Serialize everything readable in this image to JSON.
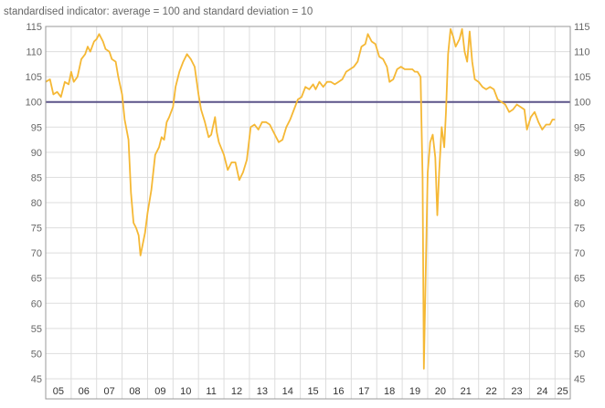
{
  "chart_data": {
    "type": "line",
    "subtitle": "standardised indicator: average = 100 and standard deviation = 10",
    "x_unit": "year",
    "xlim": [
      2005.0,
      2025.6
    ],
    "ylim": [
      45,
      115
    ],
    "y_ticks": [
      45,
      50,
      55,
      60,
      65,
      70,
      75,
      80,
      85,
      90,
      95,
      100,
      105,
      110,
      115
    ],
    "x_ticks": [
      "05",
      "06",
      "07",
      "08",
      "09",
      "10",
      "11",
      "12",
      "13",
      "14",
      "15",
      "16",
      "17",
      "18",
      "19",
      "20",
      "21",
      "22",
      "23",
      "24",
      "25"
    ],
    "reference_line": {
      "y": 100,
      "color": "#5b5489"
    },
    "grid": true,
    "colors": {
      "series": "#f5b835",
      "grid": "#dddddd",
      "axis": "#999999",
      "reference": "#5b5489"
    },
    "series": [
      {
        "points": [
          [
            2005.0,
            104.0
          ],
          [
            2005.17,
            104.5
          ],
          [
            2005.3,
            101.5
          ],
          [
            2005.45,
            102.0
          ],
          [
            2005.6,
            101.0
          ],
          [
            2005.75,
            104.0
          ],
          [
            2005.9,
            103.5
          ],
          [
            2006.0,
            106.0
          ],
          [
            2006.1,
            104.0
          ],
          [
            2006.25,
            105.0
          ],
          [
            2006.4,
            108.5
          ],
          [
            2006.55,
            109.5
          ],
          [
            2006.65,
            111.0
          ],
          [
            2006.75,
            110.0
          ],
          [
            2006.9,
            112.0
          ],
          [
            2007.0,
            112.5
          ],
          [
            2007.1,
            113.5
          ],
          [
            2007.25,
            112.0
          ],
          [
            2007.35,
            110.5
          ],
          [
            2007.5,
            110.0
          ],
          [
            2007.6,
            108.5
          ],
          [
            2007.75,
            108.0
          ],
          [
            2007.85,
            105.0
          ],
          [
            2008.0,
            101.5
          ],
          [
            2008.1,
            96.5
          ],
          [
            2008.25,
            92.5
          ],
          [
            2008.35,
            82.0
          ],
          [
            2008.45,
            76.0
          ],
          [
            2008.55,
            75.0
          ],
          [
            2008.65,
            73.5
          ],
          [
            2008.72,
            69.5
          ],
          [
            2008.8,
            71.5
          ],
          [
            2008.9,
            74.0
          ],
          [
            2009.0,
            78.0
          ],
          [
            2009.15,
            82.5
          ],
          [
            2009.3,
            89.5
          ],
          [
            2009.45,
            91.0
          ],
          [
            2009.55,
            93.0
          ],
          [
            2009.65,
            92.5
          ],
          [
            2009.75,
            96.0
          ],
          [
            2009.85,
            97.0
          ],
          [
            2010.0,
            99.0
          ],
          [
            2010.1,
            103.0
          ],
          [
            2010.25,
            106.0
          ],
          [
            2010.4,
            108.0
          ],
          [
            2010.55,
            109.5
          ],
          [
            2010.7,
            108.5
          ],
          [
            2010.85,
            107.0
          ],
          [
            2011.0,
            101.5
          ],
          [
            2011.1,
            98.5
          ],
          [
            2011.25,
            96.0
          ],
          [
            2011.4,
            93.0
          ],
          [
            2011.5,
            93.5
          ],
          [
            2011.65,
            97.0
          ],
          [
            2011.72,
            94.0
          ],
          [
            2011.8,
            92.0
          ],
          [
            2012.0,
            89.5
          ],
          [
            2012.15,
            86.5
          ],
          [
            2012.3,
            88.0
          ],
          [
            2012.45,
            88.0
          ],
          [
            2012.6,
            84.5
          ],
          [
            2012.75,
            86.0
          ],
          [
            2012.9,
            88.5
          ],
          [
            2013.05,
            95.0
          ],
          [
            2013.2,
            95.5
          ],
          [
            2013.35,
            94.5
          ],
          [
            2013.5,
            96.0
          ],
          [
            2013.65,
            96.0
          ],
          [
            2013.8,
            95.5
          ],
          [
            2014.0,
            93.5
          ],
          [
            2014.15,
            92.0
          ],
          [
            2014.3,
            92.5
          ],
          [
            2014.45,
            95.0
          ],
          [
            2014.6,
            96.5
          ],
          [
            2014.75,
            98.5
          ],
          [
            2014.9,
            100.5
          ],
          [
            2015.05,
            101.0
          ],
          [
            2015.2,
            103.0
          ],
          [
            2015.35,
            102.5
          ],
          [
            2015.5,
            103.5
          ],
          [
            2015.6,
            102.5
          ],
          [
            2015.75,
            104.0
          ],
          [
            2015.9,
            103.0
          ],
          [
            2016.05,
            104.0
          ],
          [
            2016.2,
            104.0
          ],
          [
            2016.35,
            103.5
          ],
          [
            2016.5,
            104.0
          ],
          [
            2016.65,
            104.5
          ],
          [
            2016.8,
            106.0
          ],
          [
            2016.95,
            106.5
          ],
          [
            2017.1,
            107.0
          ],
          [
            2017.25,
            108.0
          ],
          [
            2017.4,
            111.0
          ],
          [
            2017.55,
            111.5
          ],
          [
            2017.65,
            113.5
          ],
          [
            2017.8,
            112.0
          ],
          [
            2017.95,
            111.5
          ],
          [
            2018.1,
            109.0
          ],
          [
            2018.25,
            108.5
          ],
          [
            2018.4,
            107.0
          ],
          [
            2018.5,
            104.0
          ],
          [
            2018.65,
            104.5
          ],
          [
            2018.8,
            106.5
          ],
          [
            2018.95,
            107.0
          ],
          [
            2019.1,
            106.5
          ],
          [
            2019.25,
            106.5
          ],
          [
            2019.4,
            106.5
          ],
          [
            2019.5,
            106.0
          ],
          [
            2019.6,
            106.0
          ],
          [
            2019.72,
            105.0
          ],
          [
            2019.8,
            85.0
          ],
          [
            2019.85,
            47.0
          ],
          [
            2019.92,
            65.0
          ],
          [
            2020.0,
            86.0
          ],
          [
            2020.1,
            92.0
          ],
          [
            2020.2,
            93.5
          ],
          [
            2020.3,
            89.0
          ],
          [
            2020.38,
            77.5
          ],
          [
            2020.45,
            86.0
          ],
          [
            2020.55,
            95.0
          ],
          [
            2020.65,
            91.0
          ],
          [
            2020.72,
            98.0
          ],
          [
            2020.8,
            109.5
          ],
          [
            2020.9,
            114.5
          ],
          [
            2021.0,
            113.0
          ],
          [
            2021.1,
            111.0
          ],
          [
            2021.25,
            112.5
          ],
          [
            2021.35,
            114.5
          ],
          [
            2021.45,
            110.0
          ],
          [
            2021.55,
            108.0
          ],
          [
            2021.65,
            114.0
          ],
          [
            2021.75,
            108.0
          ],
          [
            2021.85,
            104.5
          ],
          [
            2022.0,
            104.0
          ],
          [
            2022.15,
            103.0
          ],
          [
            2022.3,
            102.5
          ],
          [
            2022.45,
            103.0
          ],
          [
            2022.6,
            102.5
          ],
          [
            2022.75,
            100.5
          ],
          [
            2022.9,
            100.0
          ],
          [
            2023.05,
            99.5
          ],
          [
            2023.2,
            98.0
          ],
          [
            2023.35,
            98.5
          ],
          [
            2023.5,
            99.5
          ],
          [
            2023.65,
            99.0
          ],
          [
            2023.8,
            98.5
          ],
          [
            2023.9,
            94.5
          ],
          [
            2024.05,
            97.0
          ],
          [
            2024.2,
            98.0
          ],
          [
            2024.35,
            96.0
          ],
          [
            2024.5,
            94.5
          ],
          [
            2024.65,
            95.5
          ],
          [
            2024.8,
            95.5
          ],
          [
            2024.9,
            96.5
          ],
          [
            2025.0,
            96.5
          ]
        ]
      }
    ]
  }
}
